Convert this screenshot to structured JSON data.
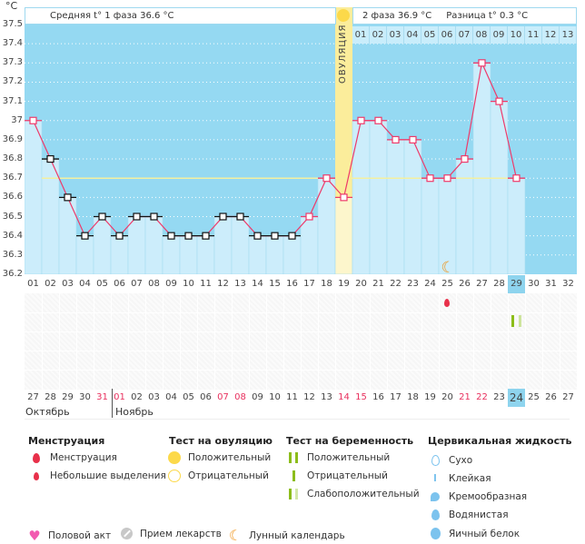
{
  "axis": {
    "unit": "°C",
    "ticks": [
      "37.5",
      "37.4",
      "37.3",
      "37.2",
      "37.1",
      "37",
      "36.9",
      "36.8",
      "36.7",
      "36.6",
      "36.5",
      "36.4",
      "36.3",
      "36.2"
    ]
  },
  "header": {
    "phase1": "Средняя t° 1 фаза 36.6 °C",
    "phase2": "2 фаза 36.9 °C",
    "diff": "Разница t° 0.3 °C",
    "ovulation_label": "ОВУЛЯЦИЯ"
  },
  "phase2_days": [
    "01",
    "02",
    "03",
    "04",
    "05",
    "06",
    "07",
    "08",
    "09",
    "10",
    "11",
    "12",
    "13"
  ],
  "chart_data": {
    "type": "line",
    "title": "",
    "xlabel": "",
    "ylabel": "°C",
    "ylim": [
      36.2,
      37.5
    ],
    "x": [
      "01",
      "02",
      "03",
      "04",
      "05",
      "06",
      "07",
      "08",
      "09",
      "10",
      "11",
      "12",
      "13",
      "14",
      "15",
      "16",
      "17",
      "18",
      "19",
      "20",
      "21",
      "22",
      "23",
      "24",
      "25",
      "26",
      "27",
      "28",
      "29",
      "30",
      "31",
      "32"
    ],
    "temps": [
      37.0,
      36.8,
      36.6,
      36.4,
      36.5,
      36.4,
      36.5,
      36.5,
      36.4,
      36.4,
      36.4,
      36.5,
      36.5,
      36.4,
      36.4,
      36.4,
      36.5,
      36.7,
      36.6,
      37.0,
      37.0,
      36.9,
      36.9,
      36.7,
      36.7,
      36.8,
      37.3,
      37.1,
      36.7
    ],
    "coverline": 36.7,
    "ovulation_day": 19,
    "current_day": 29,
    "moon_day": 25
  },
  "cycle_days": [
    "01",
    "02",
    "03",
    "04",
    "05",
    "06",
    "07",
    "08",
    "09",
    "10",
    "11",
    "12",
    "13",
    "14",
    "15",
    "16",
    "17",
    "18",
    "19",
    "20",
    "21",
    "22",
    "23",
    "24",
    "25",
    "26",
    "27",
    "28",
    "29",
    "30",
    "31",
    "32"
  ],
  "dates": [
    "27",
    "28",
    "29",
    "30",
    "31",
    "01",
    "02",
    "03",
    "04",
    "05",
    "06",
    "07",
    "08",
    "09",
    "10",
    "11",
    "12",
    "13",
    "14",
    "15",
    "16",
    "17",
    "18",
    "19",
    "20",
    "21",
    "22",
    "23",
    "24",
    "25",
    "26",
    "27"
  ],
  "red_dates": [
    4,
    5,
    11,
    12,
    18,
    19,
    25,
    26
  ],
  "months": [
    "Октябрь",
    "Ноябрь"
  ],
  "legend": {
    "menstruation": {
      "title": "Менструация",
      "items": [
        "Менструация",
        "Небольшие выделения"
      ]
    },
    "ovulation_test": {
      "title": "Тест на овуляцию",
      "items": [
        "Положительный",
        "Отрицательный"
      ]
    },
    "pregnancy_test": {
      "title": "Тест на беременность",
      "items": [
        "Положительный",
        "Отрицательный",
        "Слабоположительный"
      ]
    },
    "cervical": {
      "title": "Цервикальная жидкость",
      "items": [
        "Сухо",
        "Клейкая",
        "Кремообразная",
        "Водянистая",
        "Яичный белок"
      ]
    },
    "other": [
      "Половой акт",
      "Прием лекарств",
      "Лунный календарь"
    ]
  },
  "colors": {
    "sky": "#95d9f2",
    "bar": "#ccedfb",
    "line": "#ee3a6a",
    "ovulation": "#fbed9b",
    "green": "#8cbd1a",
    "current": "#8ed4ee"
  }
}
